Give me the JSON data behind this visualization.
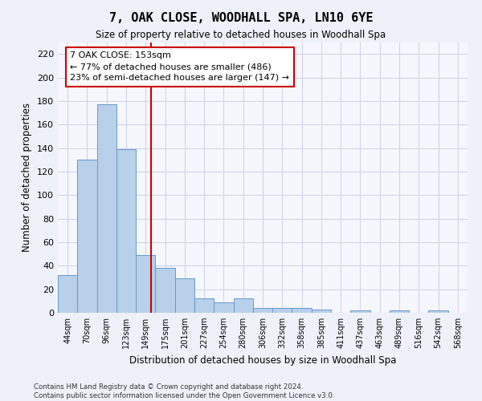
{
  "title": "7, OAK CLOSE, WOODHALL SPA, LN10 6YE",
  "subtitle": "Size of property relative to detached houses in Woodhall Spa",
  "xlabel": "Distribution of detached houses by size in Woodhall Spa",
  "ylabel": "Number of detached properties",
  "bar_values": [
    32,
    130,
    177,
    139,
    49,
    38,
    29,
    12,
    9,
    12,
    4,
    4,
    4,
    3,
    0,
    2,
    0,
    2,
    0,
    2
  ],
  "bar_labels": [
    "44sqm",
    "70sqm",
    "96sqm",
    "123sqm",
    "149sqm",
    "175sqm",
    "201sqm",
    "227sqm",
    "254sqm",
    "280sqm",
    "306sqm",
    "332sqm",
    "358sqm",
    "385sqm",
    "411sqm",
    "437sqm",
    "463sqm",
    "489sqm",
    "516sqm",
    "542sqm",
    "568sqm"
  ],
  "bar_color": "#b8d0ea",
  "bar_edge_color": "#6699cc",
  "vline_color": "#cc0000",
  "vline_pos": 4.27,
  "annotation_text": "7 OAK CLOSE: 153sqm\n← 77% of detached houses are smaller (486)\n23% of semi-detached houses are larger (147) →",
  "annotation_box_color": "#ffffff",
  "annotation_border_color": "#cc0000",
  "ylim": [
    0,
    230
  ],
  "yticks": [
    0,
    20,
    40,
    60,
    80,
    100,
    120,
    140,
    160,
    180,
    200,
    220
  ],
  "footer_text": "Contains HM Land Registry data © Crown copyright and database right 2024.\nContains public sector information licensed under the Open Government Licence v3.0.",
  "bg_color": "#eef2f8",
  "plot_bg_color": "#f5f7fc",
  "grid_color": "#d0d4e8"
}
